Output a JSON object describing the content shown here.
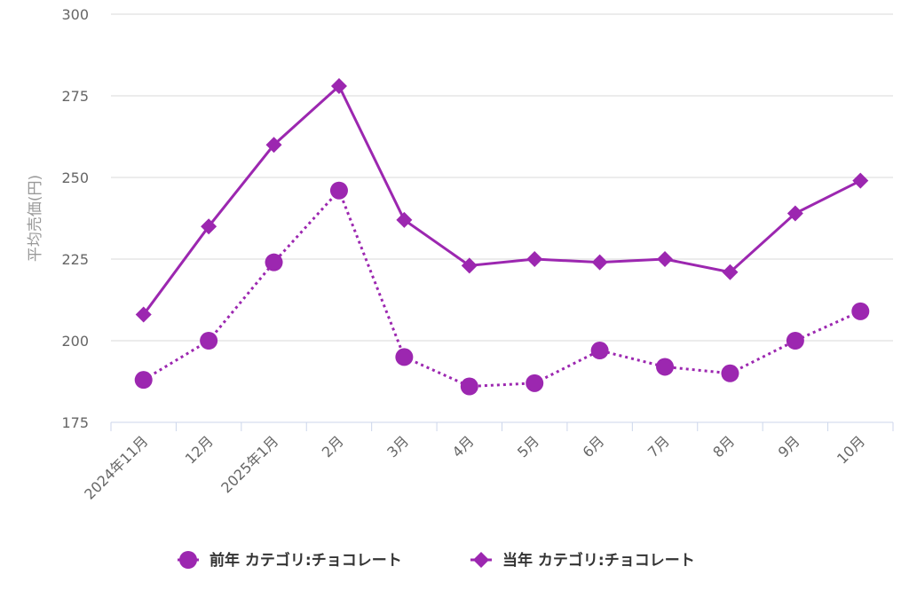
{
  "chart_data": {
    "type": "line",
    "title": "",
    "xlabel": "",
    "ylabel": "平均売価(円)",
    "ylim": [
      175,
      300
    ],
    "yticks": [
      175,
      200,
      225,
      250,
      275,
      300
    ],
    "grid": true,
    "legend_position": "bottom",
    "categories": [
      "2024年11月",
      "12月",
      "2025年1月",
      "2月",
      "3月",
      "4月",
      "5月",
      "6月",
      "7月",
      "8月",
      "9月",
      "10月"
    ],
    "series": [
      {
        "name": "前年 カテゴリ:チョコレート",
        "marker": "circle",
        "line": "dotted",
        "color": "#9c27b0",
        "values": [
          188,
          200,
          224,
          246,
          195,
          186,
          187,
          197,
          192,
          190,
          200,
          209
        ]
      },
      {
        "name": "当年 カテゴリ:チョコレート",
        "marker": "diamond",
        "line": "solid",
        "color": "#9c27b0",
        "values": [
          208,
          235,
          260,
          278,
          237,
          223,
          225,
          224,
          225,
          221,
          239,
          249
        ]
      }
    ]
  }
}
